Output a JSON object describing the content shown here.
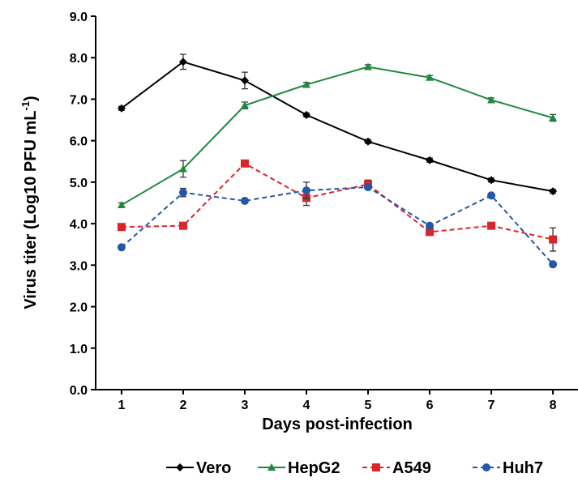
{
  "chart_data": {
    "type": "line",
    "xlabel": "Days post-infection",
    "ylabel": "Virus titer (Log10 PFU mL",
    "ylabel_sup": "-1",
    "ylabel_end": ")",
    "x": [
      1,
      2,
      3,
      4,
      5,
      6,
      7,
      8
    ],
    "xlim": [
      0.58,
      8.42
    ],
    "xticks": [
      1,
      2,
      3,
      4,
      5,
      6,
      7,
      8
    ],
    "ylim": [
      0,
      9
    ],
    "yticks": [
      {
        "value": 0,
        "label": "0.0"
      },
      {
        "value": 1,
        "label": "1.0"
      },
      {
        "value": 2,
        "label": "2.0"
      },
      {
        "value": 3,
        "label": "3.0"
      },
      {
        "value": 4,
        "label": "4.0"
      },
      {
        "value": 5,
        "label": "5.0"
      },
      {
        "value": 6,
        "label": "6.0"
      },
      {
        "value": 7,
        "label": "7.0"
      },
      {
        "value": 8,
        "label": "8.0"
      },
      {
        "value": 9,
        "label": "9.0"
      }
    ],
    "grid": false,
    "legend": "bottom",
    "series": [
      {
        "name": "Vero",
        "color": "#000000",
        "marker": "diamond",
        "dash": false,
        "values": [
          6.78,
          7.9,
          7.45,
          6.62,
          5.98,
          5.53,
          5.05,
          4.78
        ],
        "errors": [
          0.05,
          0.18,
          0.2,
          0.05,
          0.05,
          0.05,
          0.05,
          0.05
        ]
      },
      {
        "name": "HepG2",
        "color": "#1e8a3e",
        "marker": "triangle",
        "dash": false,
        "values": [
          4.45,
          5.32,
          6.85,
          7.35,
          7.78,
          7.52,
          6.98,
          6.55
        ],
        "errors": [
          0.05,
          0.2,
          0.08,
          0.05,
          0.05,
          0.05,
          0.05,
          0.08
        ]
      },
      {
        "name": "A549",
        "color": "#d9262c",
        "marker": "square",
        "dash": true,
        "values": [
          3.92,
          3.95,
          5.45,
          4.62,
          4.95,
          3.8,
          3.95,
          3.62
        ],
        "errors": [
          0.05,
          0.05,
          0.05,
          0.18,
          0.1,
          0.05,
          0.05,
          0.28
        ]
      },
      {
        "name": "Huh7",
        "color": "#2457a8",
        "marker": "circle",
        "dash": true,
        "values": [
          3.43,
          4.75,
          4.55,
          4.8,
          4.88,
          3.95,
          4.68,
          3.02
        ],
        "errors": [
          0.05,
          0.1,
          0.05,
          0.2,
          0.05,
          0.05,
          0.05,
          0.05
        ]
      }
    ]
  }
}
